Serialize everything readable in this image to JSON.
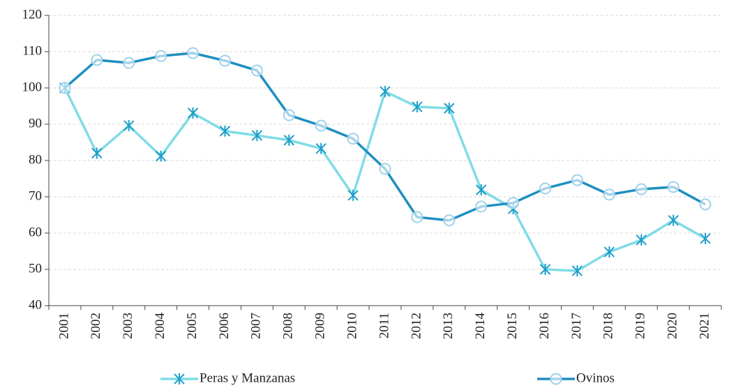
{
  "chart_data": {
    "type": "line",
    "categories": [
      "2001",
      "2002",
      "2003",
      "2004",
      "2005",
      "2006",
      "2007",
      "2008",
      "2009",
      "2010",
      "2011",
      "2012",
      "2013",
      "2014",
      "2015",
      "2016",
      "2017",
      "2018",
      "2019",
      "2020",
      "2021"
    ],
    "series": [
      {
        "name": "Peras y Manzanas",
        "color": "#7fdce6",
        "marker_color": "#1e9ec6",
        "marker": "star",
        "values": [
          100,
          82,
          89.6,
          81.2,
          93.1,
          88.1,
          86.9,
          85.6,
          83.3,
          70.4,
          99,
          94.8,
          94.4,
          71.9,
          66.7,
          50,
          49.6,
          54.8,
          58.1,
          63.5,
          58.5
        ]
      },
      {
        "name": "Ovinos",
        "color": "#1f8fc0",
        "marker_color": "#9fd2ea",
        "marker": "circle",
        "values": [
          100,
          107.7,
          106.9,
          108.8,
          109.6,
          107.5,
          104.8,
          92.5,
          89.6,
          86,
          77.7,
          64.4,
          63.5,
          67.3,
          68.3,
          72.3,
          74.6,
          70.6,
          72.1,
          72.7,
          67.9
        ]
      }
    ],
    "ylim": [
      40,
      120
    ],
    "yticks": [
      40,
      50,
      60,
      70,
      80,
      90,
      100,
      110,
      120
    ],
    "grid": true,
    "legend": "bottom"
  }
}
